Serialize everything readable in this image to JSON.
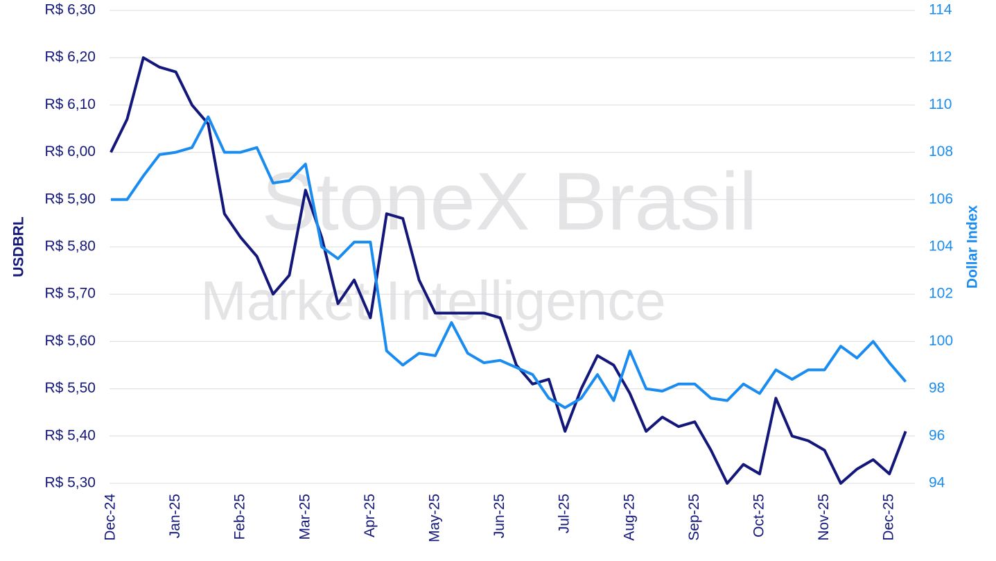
{
  "chart_data": {
    "type": "line",
    "watermark": [
      "StoneX Brasil",
      "Market Intelligence"
    ],
    "y_label": "USDBRL",
    "y2_label": "Dollar Index",
    "categories": [
      "Dec-24",
      null,
      null,
      null,
      "Jan-25",
      null,
      null,
      null,
      "Feb-25",
      null,
      null,
      null,
      "Mar-25",
      null,
      null,
      null,
      "Apr-25",
      null,
      null,
      null,
      "May-25",
      null,
      null,
      null,
      "Jun-25",
      null,
      null,
      null,
      "Jul-25",
      null,
      null,
      null,
      "Aug-25",
      null,
      null,
      null,
      "Sep-25",
      null,
      null,
      null,
      "Oct-25",
      null,
      null,
      null,
      "Nov-25",
      null,
      null,
      null,
      "Dec-25",
      null
    ],
    "series": [
      {
        "name": "USDBRL",
        "color": "#13177a",
        "values": [
          6.0,
          6.07,
          6.2,
          6.18,
          6.17,
          6.1,
          6.06,
          5.87,
          5.82,
          5.78,
          5.7,
          5.74,
          5.92,
          5.82,
          5.68,
          5.73,
          5.65,
          5.87,
          5.86,
          5.73,
          5.66,
          5.66,
          5.66,
          5.66,
          5.65,
          5.55,
          5.51,
          5.52,
          5.41,
          5.5,
          5.57,
          5.55,
          5.49,
          5.41,
          5.44,
          5.42,
          5.43,
          5.37,
          5.3,
          5.34,
          5.32,
          5.48,
          5.4,
          5.39,
          5.37,
          5.3,
          5.33,
          5.35,
          5.32,
          5.41
        ]
      },
      {
        "name": "Dollar Index",
        "color": "#1a8cef",
        "axis": "y2",
        "values": [
          106.0,
          106.0,
          107.0,
          107.9,
          108.0,
          108.2,
          109.5,
          108.0,
          108.0,
          108.2,
          106.7,
          106.8,
          107.5,
          104.0,
          103.5,
          104.2,
          104.2,
          99.6,
          99.0,
          99.5,
          99.4,
          100.8,
          99.5,
          99.1,
          99.2,
          98.9,
          98.6,
          97.6,
          97.2,
          97.6,
          98.6,
          97.5,
          99.6,
          98.0,
          97.9,
          98.2,
          98.2,
          97.6,
          97.5,
          98.2,
          97.8,
          98.8,
          98.4,
          98.8,
          98.8,
          99.8,
          99.3,
          100.0,
          99.1,
          98.3
        ]
      }
    ],
    "ylim": [
      5.3,
      6.3
    ],
    "yticks": [
      {
        "value": 5.3,
        "label": "R$ 5,30"
      },
      {
        "value": 5.4,
        "label": "R$ 5,40"
      },
      {
        "value": 5.5,
        "label": "R$ 5,50"
      },
      {
        "value": 5.6,
        "label": "R$ 5,60"
      },
      {
        "value": 5.7,
        "label": "R$ 5,70"
      },
      {
        "value": 5.8,
        "label": "R$ 5,80"
      },
      {
        "value": 5.9,
        "label": "R$ 5,90"
      },
      {
        "value": 6.0,
        "label": "R$ 6,00"
      },
      {
        "value": 6.1,
        "label": "R$ 6,10"
      },
      {
        "value": 6.2,
        "label": "R$ 6,20"
      },
      {
        "value": 6.3,
        "label": "R$ 6,30"
      }
    ],
    "y2lim": [
      94,
      114
    ],
    "y2ticks": [
      94,
      96,
      98,
      100,
      102,
      104,
      106,
      108,
      110,
      112,
      114
    ],
    "grid": true
  }
}
